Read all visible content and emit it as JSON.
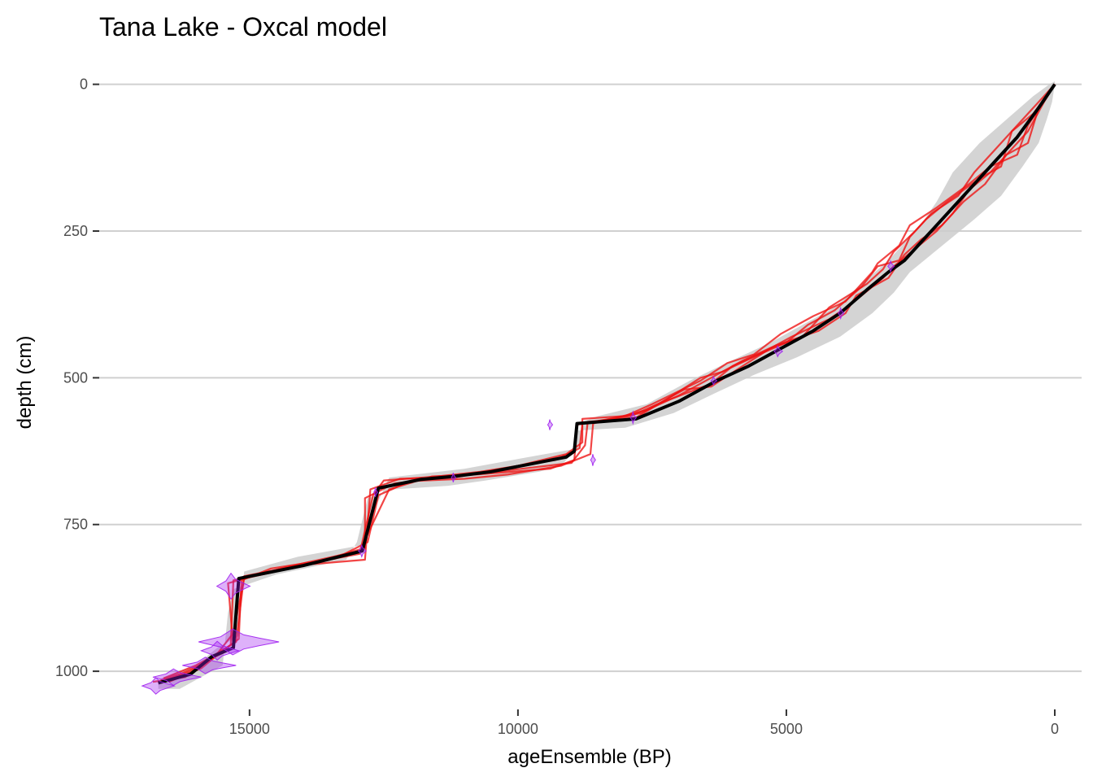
{
  "chart_data": {
    "type": "line",
    "title": "Tana Lake - Oxcal model",
    "xlabel": "ageEnsemble (BP)",
    "ylabel": "depth (cm)",
    "x_reversed": true,
    "y_reversed": true,
    "xlim": [
      17800,
      -500
    ],
    "ylim": [
      -30,
      1065
    ],
    "x_ticks": [
      15000,
      10000,
      5000,
      0
    ],
    "y_ticks": [
      0,
      250,
      500,
      750,
      1000
    ],
    "grid": "horizontal",
    "colors": {
      "median": "#000000",
      "ensemble": "#ee1111",
      "uncertainty_band": "#cccccc",
      "date_distributions": "#a020f0"
    },
    "median": [
      [
        0,
        0
      ],
      [
        300,
        40
      ],
      [
        700,
        90
      ],
      [
        1100,
        130
      ],
      [
        1500,
        170
      ],
      [
        1900,
        210
      ],
      [
        2200,
        240
      ],
      [
        2500,
        270
      ],
      [
        2800,
        300
      ],
      [
        3100,
        320
      ],
      [
        3500,
        350
      ],
      [
        4000,
        390
      ],
      [
        4500,
        420
      ],
      [
        5100,
        450
      ],
      [
        5700,
        480
      ],
      [
        6300,
        505
      ],
      [
        7000,
        540
      ],
      [
        7800,
        570
      ],
      [
        8900,
        578
      ],
      [
        8950,
        625
      ],
      [
        9100,
        635
      ],
      [
        10500,
        660
      ],
      [
        11200,
        668
      ],
      [
        11800,
        673
      ],
      [
        12600,
        688
      ],
      [
        12900,
        795
      ],
      [
        14000,
        820
      ],
      [
        15200,
        842
      ],
      [
        15300,
        960
      ],
      [
        15700,
        975
      ],
      [
        16100,
        1005
      ],
      [
        16700,
        1020
      ]
    ],
    "band_young": [
      [
        0,
        -5
      ],
      [
        100,
        0
      ],
      [
        400,
        20
      ],
      [
        900,
        60
      ],
      [
        1400,
        100
      ],
      [
        1900,
        150
      ],
      [
        2200,
        200
      ],
      [
        2500,
        240
      ],
      [
        2800,
        270
      ],
      [
        3100,
        300
      ],
      [
        3600,
        340
      ],
      [
        4100,
        380
      ],
      [
        4700,
        410
      ],
      [
        5300,
        440
      ],
      [
        6000,
        470
      ],
      [
        6800,
        505
      ],
      [
        7600,
        545
      ],
      [
        8500,
        565
      ],
      [
        8800,
        575
      ],
      [
        8850,
        620
      ],
      [
        9500,
        630
      ],
      [
        11000,
        655
      ],
      [
        12400,
        670
      ],
      [
        12700,
        730
      ],
      [
        12900,
        785
      ],
      [
        14100,
        805
      ],
      [
        15100,
        830
      ],
      [
        15200,
        940
      ],
      [
        15600,
        960
      ],
      [
        16000,
        990
      ],
      [
        16600,
        1010
      ],
      [
        16700,
        1015
      ]
    ],
    "band_old": [
      [
        16700,
        1030
      ],
      [
        16300,
        1030
      ],
      [
        15900,
        1010
      ],
      [
        15500,
        990
      ],
      [
        15400,
        900
      ],
      [
        15300,
        860
      ],
      [
        14500,
        835
      ],
      [
        13200,
        810
      ],
      [
        13000,
        780
      ],
      [
        12800,
        705
      ],
      [
        12300,
        690
      ],
      [
        11300,
        684
      ],
      [
        10600,
        675
      ],
      [
        9600,
        660
      ],
      [
        9200,
        650
      ],
      [
        9000,
        630
      ],
      [
        8900,
        590
      ],
      [
        8000,
        585
      ],
      [
        7100,
        560
      ],
      [
        6300,
        525
      ],
      [
        5600,
        495
      ],
      [
        4800,
        465
      ],
      [
        4000,
        430
      ],
      [
        3400,
        390
      ],
      [
        3000,
        355
      ],
      [
        2700,
        320
      ],
      [
        2300,
        290
      ],
      [
        1900,
        260
      ],
      [
        1500,
        230
      ],
      [
        1000,
        190
      ],
      [
        600,
        140
      ],
      [
        300,
        100
      ],
      [
        150,
        60
      ],
      [
        50,
        30
      ],
      [
        0,
        0
      ]
    ],
    "ensemble": [
      [
        [
          0,
          0
        ],
        [
          200,
          30
        ],
        [
          500,
          80
        ],
        [
          800,
          110
        ],
        [
          1200,
          150
        ],
        [
          1600,
          180
        ],
        [
          1900,
          220
        ],
        [
          2200,
          250
        ],
        [
          2600,
          280
        ],
        [
          3000,
          310
        ],
        [
          3200,
          330
        ],
        [
          3800,
          375
        ],
        [
          4200,
          400
        ],
        [
          4900,
          430
        ],
        [
          5400,
          455
        ],
        [
          6000,
          480
        ],
        [
          6400,
          510
        ],
        [
          7400,
          545
        ],
        [
          7900,
          565
        ],
        [
          8800,
          578
        ],
        [
          8850,
          620
        ],
        [
          9300,
          640
        ],
        [
          10700,
          660
        ],
        [
          11500,
          668
        ],
        [
          12500,
          675
        ],
        [
          12700,
          700
        ],
        [
          12950,
          800
        ],
        [
          14100,
          820
        ],
        [
          15100,
          838
        ],
        [
          15250,
          950
        ],
        [
          15650,
          972
        ],
        [
          16100,
          1000
        ],
        [
          16700,
          1020
        ]
      ],
      [
        [
          0,
          0
        ],
        [
          400,
          50
        ],
        [
          800,
          80
        ],
        [
          1000,
          140
        ],
        [
          1400,
          160
        ],
        [
          2000,
          200
        ],
        [
          2400,
          230
        ],
        [
          2700,
          260
        ],
        [
          2900,
          300
        ],
        [
          3300,
          310
        ],
        [
          3600,
          345
        ],
        [
          4100,
          385
        ],
        [
          4600,
          410
        ],
        [
          5000,
          440
        ],
        [
          5500,
          460
        ],
        [
          6200,
          490
        ],
        [
          6600,
          500
        ],
        [
          7200,
          535
        ],
        [
          7800,
          568
        ],
        [
          8700,
          575
        ],
        [
          8750,
          615
        ],
        [
          9000,
          645
        ],
        [
          10400,
          660
        ],
        [
          11400,
          670
        ],
        [
          12300,
          680
        ],
        [
          12850,
          705
        ],
        [
          12850,
          790
        ],
        [
          13800,
          815
        ],
        [
          15300,
          845
        ],
        [
          15350,
          955
        ],
        [
          15800,
          985
        ],
        [
          16300,
          1005
        ],
        [
          16650,
          1015
        ]
      ],
      [
        [
          0,
          0
        ],
        [
          300,
          40
        ],
        [
          500,
          100
        ],
        [
          900,
          120
        ],
        [
          1300,
          170
        ],
        [
          1700,
          200
        ],
        [
          2100,
          240
        ],
        [
          2500,
          265
        ],
        [
          2800,
          290
        ],
        [
          3100,
          330
        ],
        [
          3700,
          360
        ],
        [
          3900,
          390
        ],
        [
          4400,
          420
        ],
        [
          5200,
          445
        ],
        [
          5800,
          470
        ],
        [
          6300,
          495
        ],
        [
          7000,
          530
        ],
        [
          7600,
          555
        ],
        [
          8600,
          578
        ],
        [
          8650,
          630
        ],
        [
          9200,
          650
        ],
        [
          10200,
          665
        ],
        [
          11000,
          672
        ],
        [
          12000,
          676
        ],
        [
          12600,
          700
        ],
        [
          12800,
          780
        ],
        [
          13400,
          808
        ],
        [
          14600,
          825
        ],
        [
          15150,
          845
        ],
        [
          15200,
          945
        ],
        [
          15500,
          965
        ],
        [
          15900,
          995
        ],
        [
          16500,
          1018
        ]
      ],
      [
        [
          0,
          0
        ],
        [
          200,
          20
        ],
        [
          600,
          60
        ],
        [
          1100,
          110
        ],
        [
          1500,
          150
        ],
        [
          1800,
          190
        ],
        [
          2300,
          220
        ],
        [
          2600,
          250
        ],
        [
          3000,
          285
        ],
        [
          3200,
          315
        ],
        [
          3500,
          340
        ],
        [
          4200,
          380
        ],
        [
          4700,
          430
        ],
        [
          5300,
          450
        ],
        [
          5900,
          485
        ],
        [
          6400,
          515
        ],
        [
          6900,
          520
        ],
        [
          7700,
          560
        ],
        [
          8900,
          580
        ],
        [
          8950,
          640
        ],
        [
          9400,
          655
        ],
        [
          10800,
          665
        ],
        [
          11600,
          668
        ],
        [
          12400,
          690
        ],
        [
          12950,
          795
        ],
        [
          14300,
          822
        ],
        [
          15400,
          850
        ],
        [
          15300,
          960
        ],
        [
          15750,
          980
        ],
        [
          16200,
          1010
        ],
        [
          16800,
          1018
        ]
      ],
      [
        [
          0,
          0
        ],
        [
          500,
          70
        ],
        [
          700,
          120
        ],
        [
          1200,
          140
        ],
        [
          1600,
          170
        ],
        [
          2200,
          210
        ],
        [
          2700,
          240
        ],
        [
          2900,
          275
        ],
        [
          3300,
          305
        ],
        [
          3400,
          320
        ],
        [
          3900,
          370
        ],
        [
          4500,
          395
        ],
        [
          5100,
          425
        ],
        [
          5600,
          460
        ],
        [
          6100,
          475
        ],
        [
          6600,
          505
        ],
        [
          7500,
          545
        ],
        [
          8000,
          565
        ],
        [
          8800,
          570
        ],
        [
          8800,
          610
        ],
        [
          9100,
          630
        ],
        [
          10000,
          650
        ],
        [
          11200,
          670
        ],
        [
          12200,
          672
        ],
        [
          12750,
          690
        ],
        [
          12850,
          810
        ],
        [
          13900,
          818
        ],
        [
          15100,
          842
        ],
        [
          15300,
          935
        ],
        [
          15600,
          970
        ],
        [
          16000,
          990
        ],
        [
          16600,
          1012
        ]
      ]
    ],
    "date_distributions": [
      {
        "age": 3050,
        "depth": 310,
        "height": 9,
        "width": 120
      },
      {
        "age": 3980,
        "depth": 390,
        "height": 9,
        "width": 110
      },
      {
        "age": 5150,
        "depth": 455,
        "height": 9,
        "width": 160
      },
      {
        "age": 6350,
        "depth": 505,
        "height": 7,
        "width": 110
      },
      {
        "age": 7850,
        "depth": 568,
        "height": 10,
        "width": 110
      },
      {
        "age": 9400,
        "depth": 580,
        "height": 9,
        "width": 90
      },
      {
        "age": 8600,
        "depth": 640,
        "height": 10,
        "width": 90
      },
      {
        "age": 11200,
        "depth": 670,
        "height": 8,
        "width": 80
      },
      {
        "age": 12650,
        "depth": 695,
        "height": 8,
        "width": 70
      },
      {
        "age": 12900,
        "depth": 795,
        "height": 10,
        "width": 140
      },
      {
        "age": 15300,
        "depth": 855,
        "height": 22,
        "width": 620
      },
      {
        "age": 15200,
        "depth": 950,
        "height": 22,
        "width": 1500
      },
      {
        "age": 15550,
        "depth": 965,
        "height": 16,
        "width": 700
      },
      {
        "age": 15750,
        "depth": 990,
        "height": 14,
        "width": 1000
      },
      {
        "age": 16350,
        "depth": 1010,
        "height": 14,
        "width": 900
      },
      {
        "age": 16700,
        "depth": 1025,
        "height": 14,
        "width": 600
      }
    ]
  }
}
